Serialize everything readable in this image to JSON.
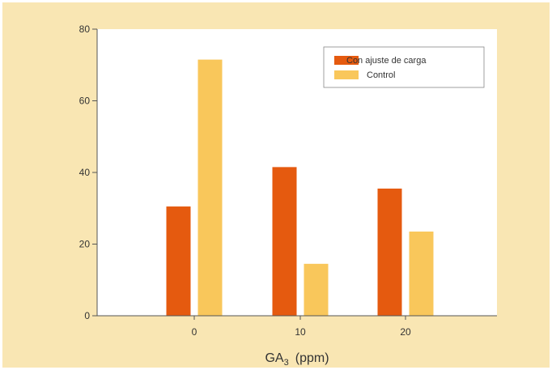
{
  "chart_data": {
    "type": "bar",
    "categories": [
      "0",
      "10",
      "20"
    ],
    "series": [
      {
        "name": "Con ajuste de carga",
        "color": "#e55a0f",
        "values": [
          30.5,
          41.5,
          35.5
        ]
      },
      {
        "name": "Control",
        "color": "#f9c75b",
        "values": [
          71.5,
          14.5,
          23.5
        ]
      }
    ],
    "xlabel": "GA",
    "xlabel_sub": "3",
    "xlabel_unit": "(ppm)",
    "ylim": [
      0,
      80
    ],
    "yticks": [
      0,
      20,
      40,
      60,
      80
    ],
    "grid": false,
    "legend_position": "top-right"
  },
  "colors": {
    "background": "#f9e6b3",
    "plot_area": "#ffffff",
    "axis": "#555555"
  }
}
